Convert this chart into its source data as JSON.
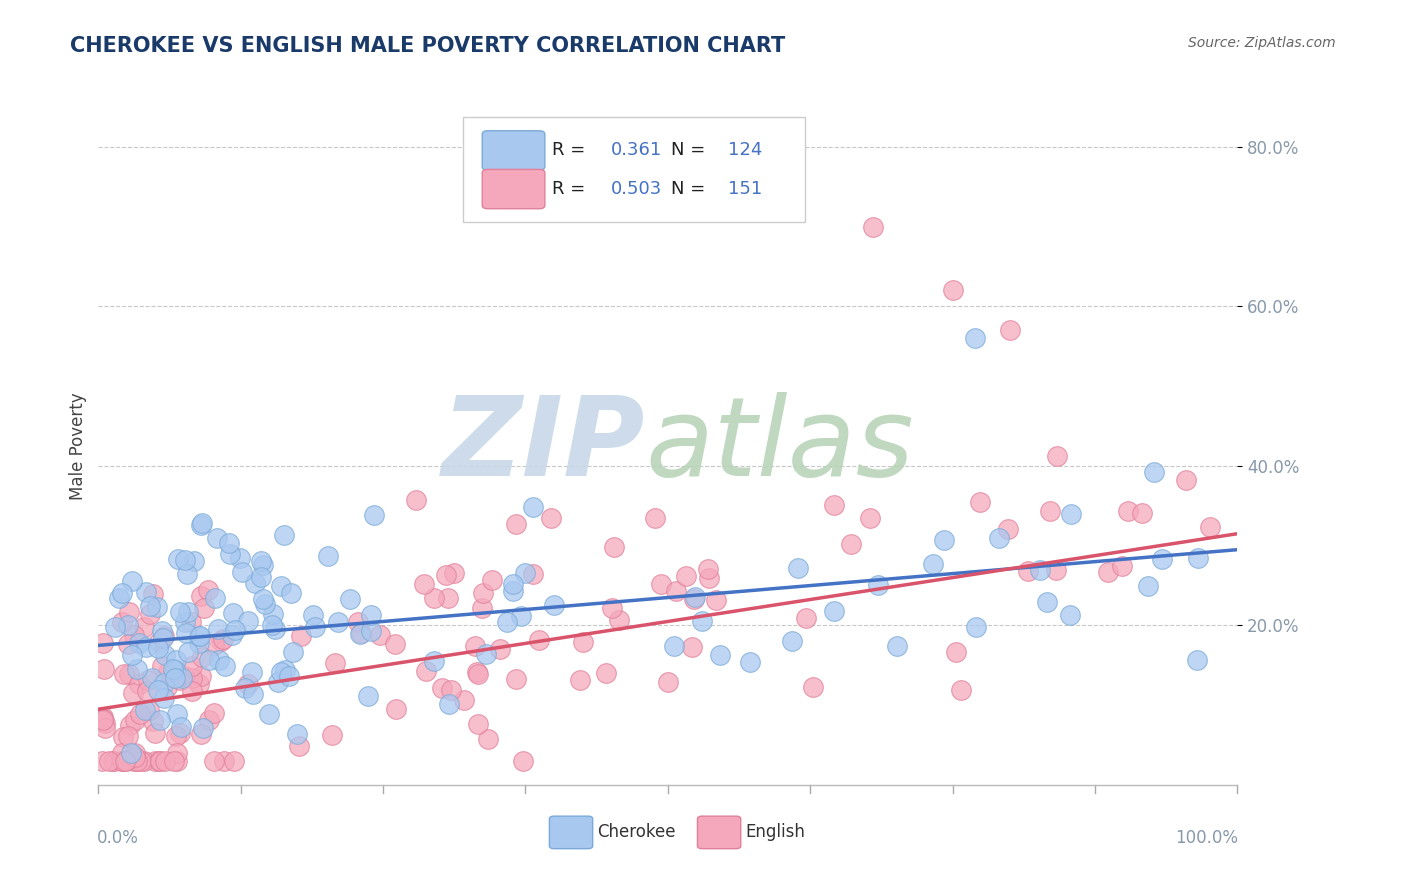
{
  "title": "CHEROKEE VS ENGLISH MALE POVERTY CORRELATION CHART",
  "source": "Source: ZipAtlas.com",
  "ylabel": "Male Poverty",
  "xlim": [
    0.0,
    1.0
  ],
  "ylim": [
    0.0,
    0.85
  ],
  "cherokee_R": 0.361,
  "cherokee_N": 124,
  "english_R": 0.503,
  "english_N": 151,
  "cherokee_color": "#a8c8f0",
  "english_color": "#f5a8bc",
  "cherokee_edge_color": "#7aaad8",
  "english_edge_color": "#e0809a",
  "cherokee_line_color": "#4472c4",
  "english_line_color": "#d9536a",
  "background_color": "#ffffff",
  "grid_color": "#c8c8c8",
  "title_color": "#1a3a6a",
  "watermark_zip_color": "#c8d8e8",
  "watermark_atlas_color": "#b8d4b8",
  "legend_border_color": "#cccccc",
  "axis_color": "#8899aa",
  "cherokee_line_start_y": 0.175,
  "cherokee_line_end_y": 0.295,
  "english_line_start_y": 0.095,
  "english_line_end_y": 0.315
}
